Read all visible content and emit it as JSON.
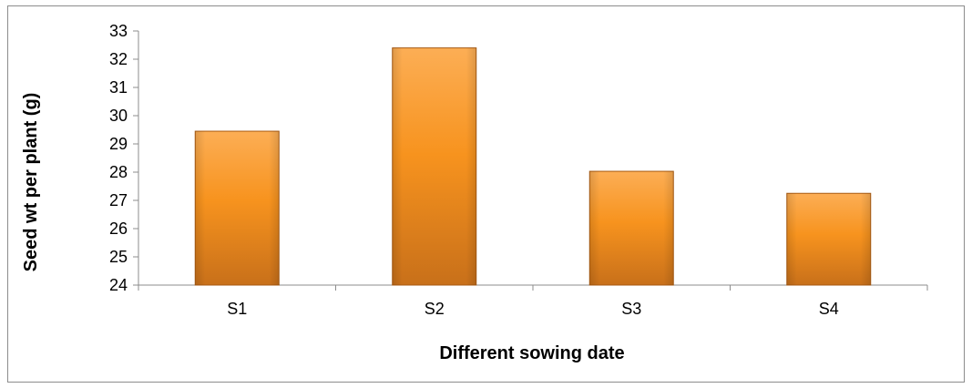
{
  "chart_data": {
    "type": "bar",
    "title": "",
    "xlabel": "Different sowing date",
    "ylabel": "Seed wt per plant (g)",
    "categories": [
      "S1",
      "S2",
      "S3",
      "S4"
    ],
    "values": [
      29.45,
      32.4,
      28.03,
      27.25
    ],
    "ylim": [
      24,
      33
    ],
    "yticks": [
      24,
      25,
      26,
      27,
      28,
      29,
      30,
      31,
      32,
      33
    ],
    "grid": false,
    "legend": "none",
    "colors": {
      "bar_top": "#fcae55",
      "bar_mid": "#f7931e",
      "bar_bottom": "#c8701a",
      "bar_edge": "#a85a12",
      "axis": "#8c8c8c"
    }
  }
}
